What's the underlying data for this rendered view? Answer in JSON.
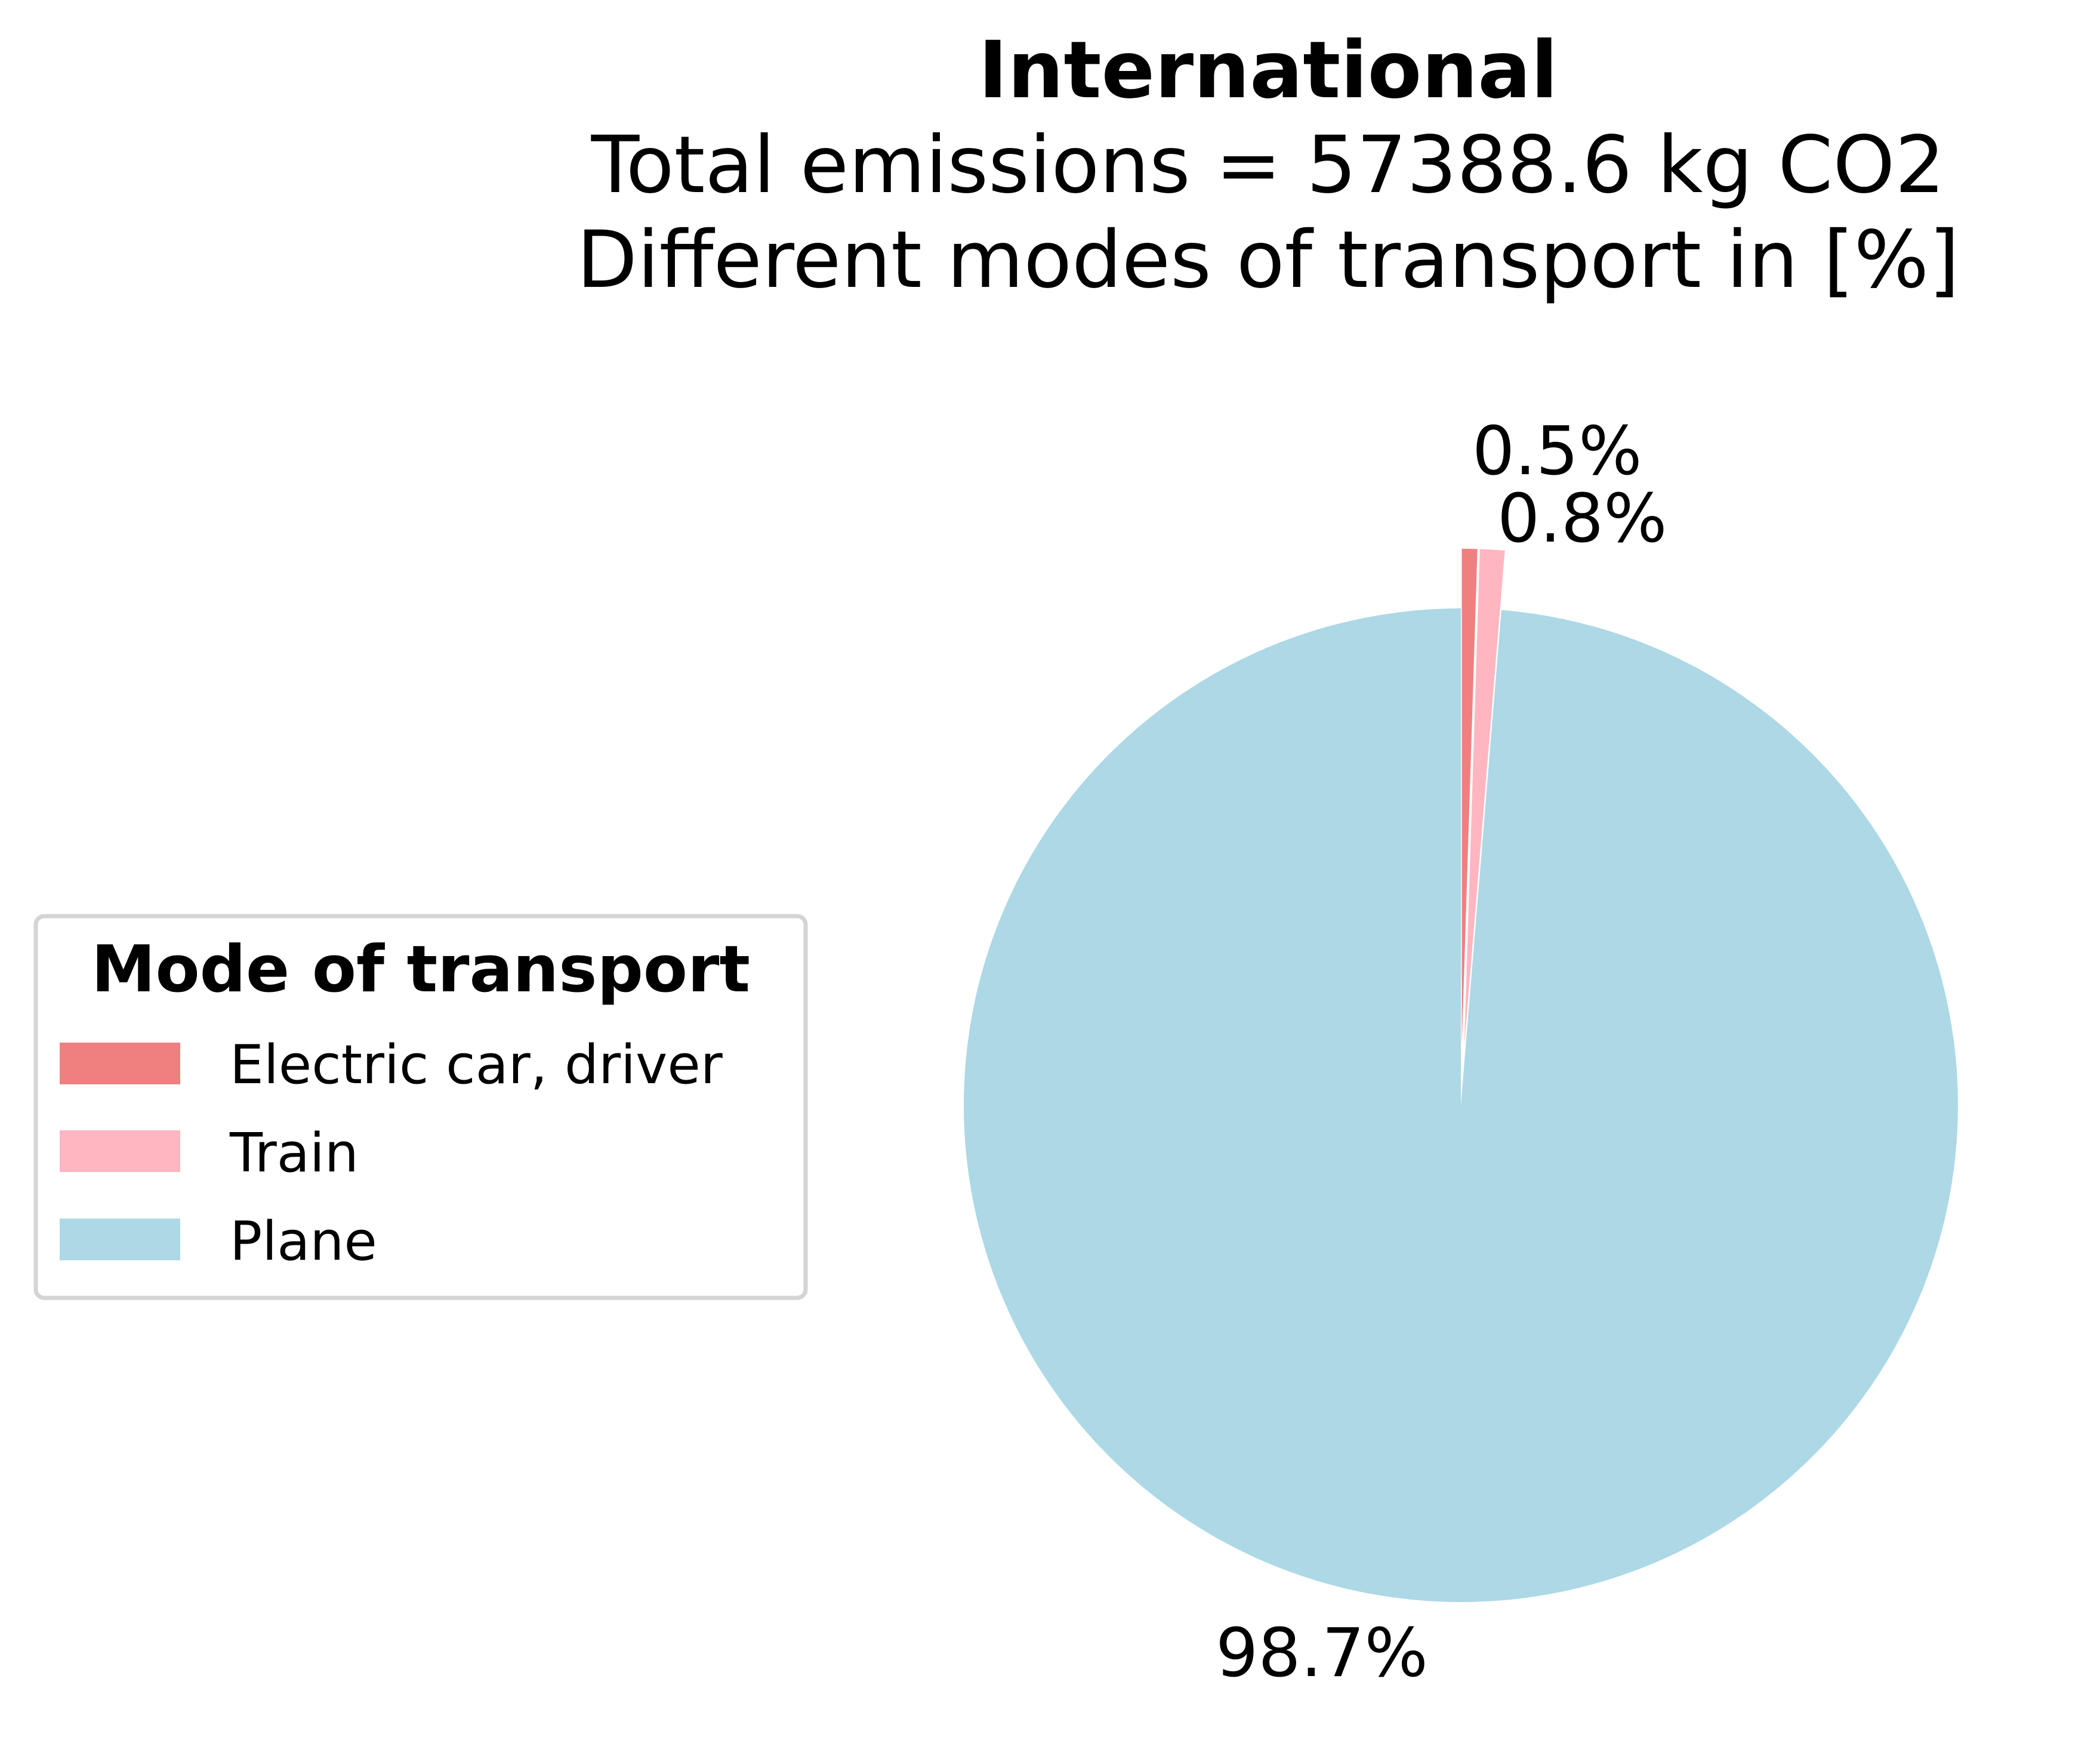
{
  "chart_data": {
    "type": "pie",
    "title": "International",
    "subtitle_lines": [
      "Total emissions = 57388.6 kg CO2",
      "Different modes of transport in [%]"
    ],
    "slices": [
      {
        "name": "Electric car, driver",
        "value": 0.5,
        "label": "0.5%",
        "color": "#f08080",
        "exploded": true
      },
      {
        "name": "Train",
        "value": 0.8,
        "label": "0.8%",
        "color": "#ffb6c1",
        "exploded": true
      },
      {
        "name": "Plane",
        "value": 98.7,
        "label": "98.7%",
        "color": "#add8e6",
        "exploded": false
      }
    ],
    "start_angle": "top, counterclockwise from Electric car",
    "legend": {
      "title": "Mode of transport",
      "placement": "center-left",
      "entries": [
        "Electric car, driver",
        "Train",
        "Plane"
      ]
    }
  }
}
